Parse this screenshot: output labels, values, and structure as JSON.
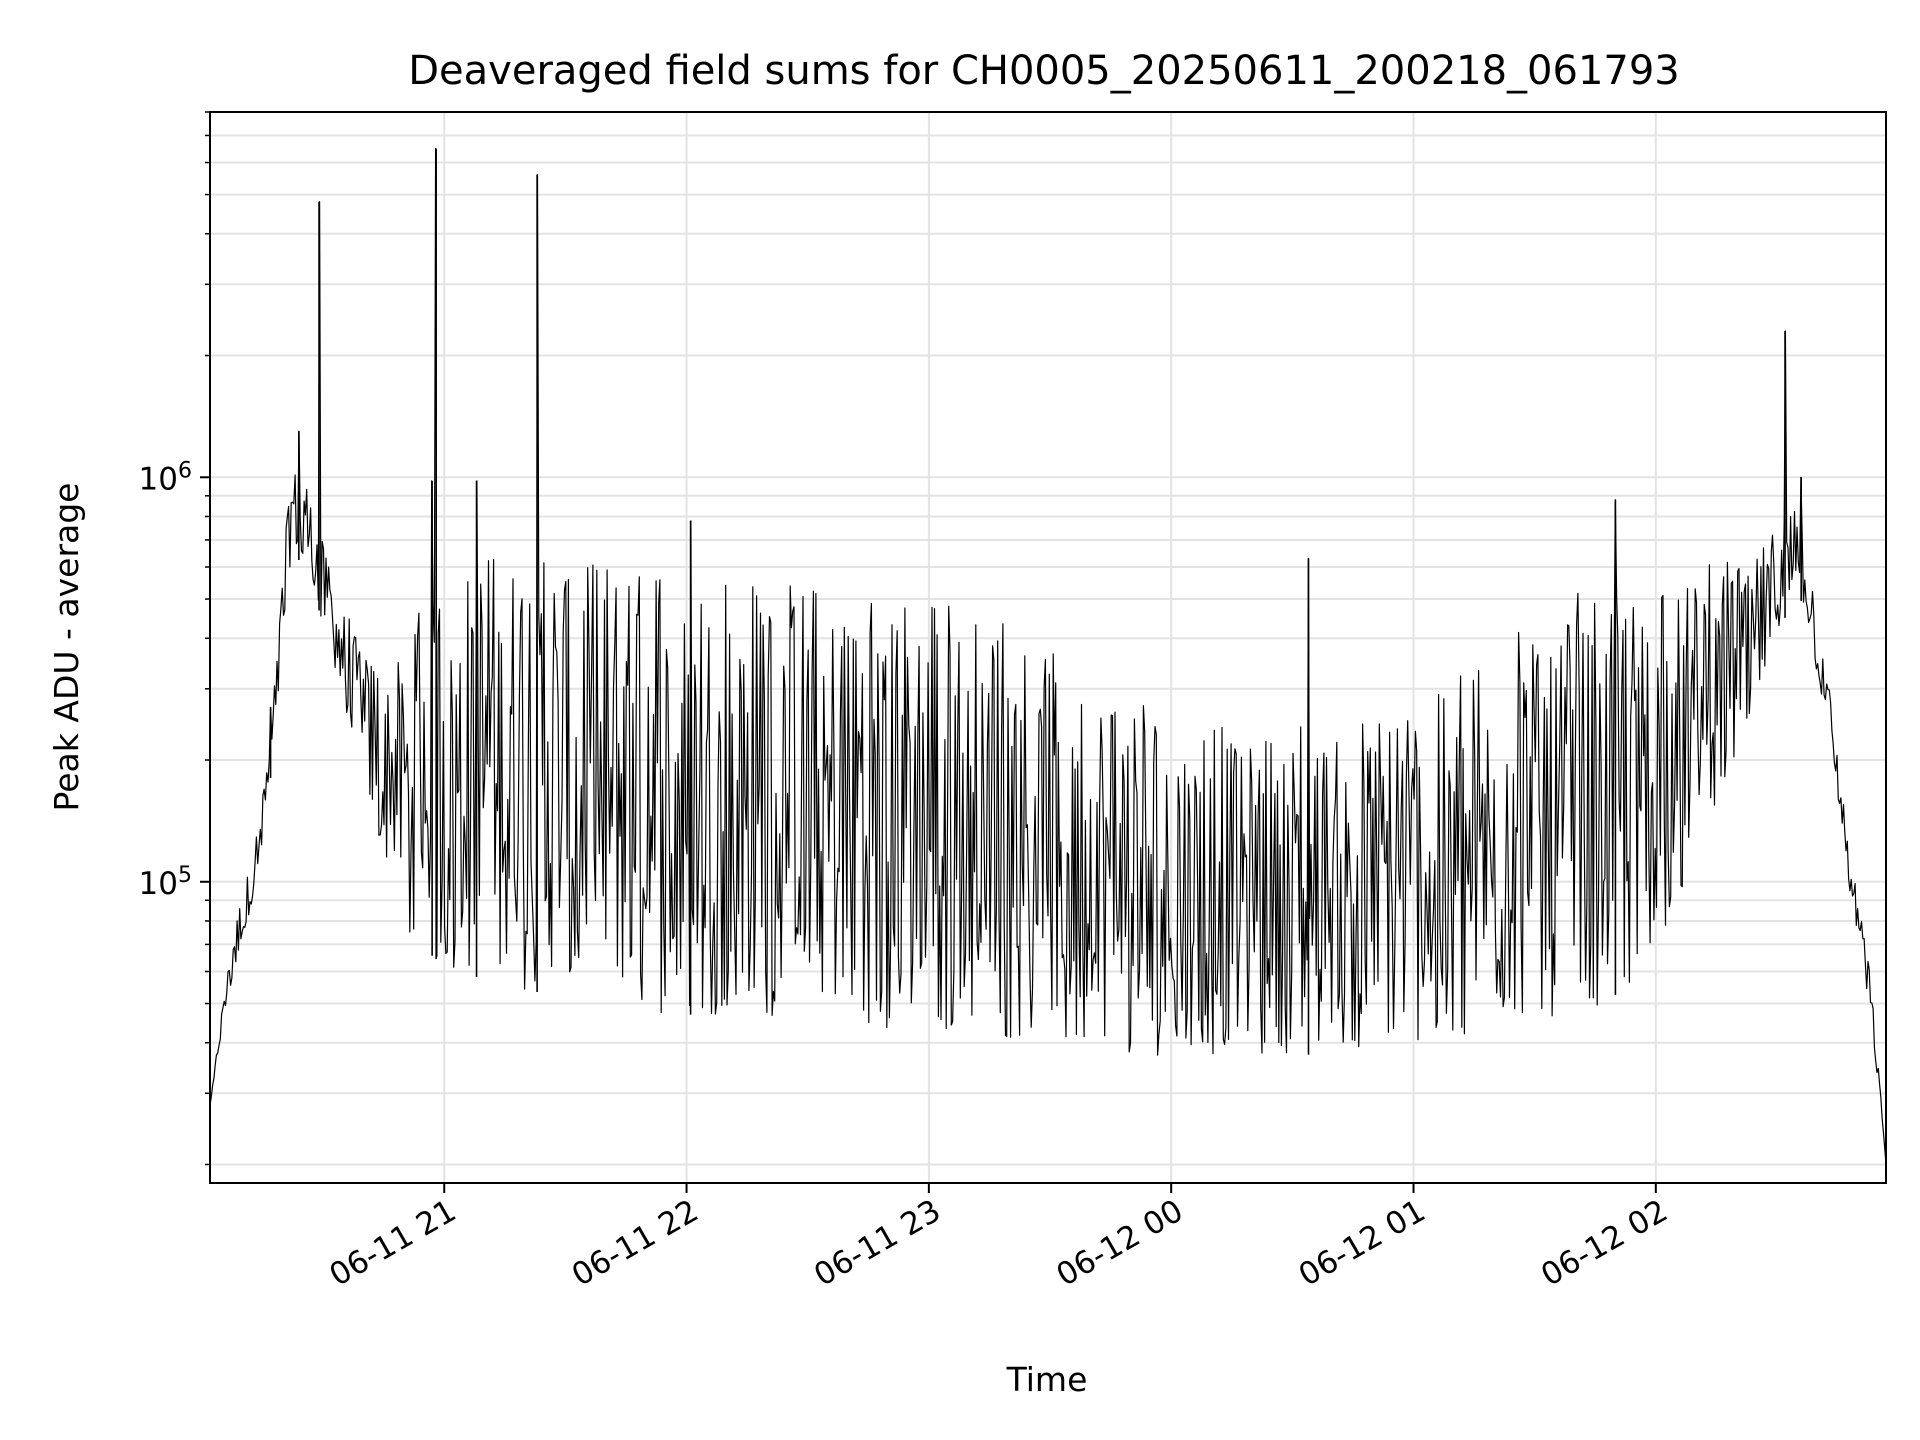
{
  "chart_data": {
    "type": "line",
    "title": "Deaveraged field sums for CH0005_20250611_200218_061793",
    "xlabel": "Time",
    "ylabel": "Peak ADU - average",
    "yscale": "log",
    "ylim": [
      18000,
      8000000
    ],
    "xlim": [
      "2025-06-11 20:02",
      "2025-06-12 02:57"
    ],
    "grid": true,
    "x_ticks": [
      {
        "time": "2025-06-11 21:00",
        "label": "06-11 21"
      },
      {
        "time": "2025-06-11 22:00",
        "label": "06-11 22"
      },
      {
        "time": "2025-06-11 23:00",
        "label": "06-11 23"
      },
      {
        "time": "2025-06-12 00:00",
        "label": "06-12 00"
      },
      {
        "time": "2025-06-12 01:00",
        "label": "06-12 01"
      },
      {
        "time": "2025-06-12 02:00",
        "label": "06-12 02"
      }
    ],
    "y_ticks": [
      {
        "value": 100000,
        "base": "10",
        "exp": "5"
      },
      {
        "value": 1000000,
        "base": "10",
        "exp": "6"
      }
    ],
    "series": [
      {
        "color": "#000000",
        "envelope": [
          {
            "x": "2025-06-11 20:02",
            "y_low": 28000,
            "y_high": 28000
          },
          {
            "x": "2025-06-11 20:06",
            "y_low": 50000,
            "y_high": 58000
          },
          {
            "x": "2025-06-11 20:10",
            "y_low": 70000,
            "y_high": 95000
          },
          {
            "x": "2025-06-11 20:14",
            "y_low": 100000,
            "y_high": 140000
          },
          {
            "x": "2025-06-11 20:18",
            "y_low": 220000,
            "y_high": 320000
          },
          {
            "x": "2025-06-11 20:22",
            "y_low": 600000,
            "y_high": 1100000
          },
          {
            "x": "2025-06-11 20:26",
            "y_low": 650000,
            "y_high": 950000
          },
          {
            "x": "2025-06-11 20:30",
            "y_low": 420000,
            "y_high": 750000
          },
          {
            "x": "2025-06-11 20:35",
            "y_low": 280000,
            "y_high": 480000
          },
          {
            "x": "2025-06-11 20:40",
            "y_low": 180000,
            "y_high": 380000
          },
          {
            "x": "2025-06-11 20:45",
            "y_low": 110000,
            "y_high": 320000
          },
          {
            "x": "2025-06-11 20:50",
            "y_low": 75000,
            "y_high": 400000
          },
          {
            "x": "2025-06-11 21:00",
            "y_low": 62000,
            "y_high": 600000
          },
          {
            "x": "2025-06-11 21:15",
            "y_low": 55000,
            "y_high": 650000
          },
          {
            "x": "2025-06-11 21:30",
            "y_low": 52000,
            "y_high": 650000
          },
          {
            "x": "2025-06-11 21:45",
            "y_low": 48000,
            "y_high": 620000
          },
          {
            "x": "2025-06-11 22:00",
            "y_low": 47000,
            "y_high": 580000
          },
          {
            "x": "2025-06-11 22:20",
            "y_low": 46000,
            "y_high": 560000
          },
          {
            "x": "2025-06-11 22:40",
            "y_low": 44000,
            "y_high": 520000
          },
          {
            "x": "2025-06-11 23:00",
            "y_low": 43000,
            "y_high": 500000
          },
          {
            "x": "2025-06-11 23:20",
            "y_low": 40000,
            "y_high": 480000
          },
          {
            "x": "2025-06-11 23:40",
            "y_low": 38000,
            "y_high": 300000
          },
          {
            "x": "2025-06-12 00:00",
            "y_low": 37000,
            "y_high": 260000
          },
          {
            "x": "2025-06-12 00:20",
            "y_low": 36000,
            "y_high": 240000
          },
          {
            "x": "2025-06-12 00:40",
            "y_low": 38000,
            "y_high": 250000
          },
          {
            "x": "2025-06-12 01:00",
            "y_low": 40000,
            "y_high": 260000
          },
          {
            "x": "2025-06-12 01:20",
            "y_low": 42000,
            "y_high": 380000
          },
          {
            "x": "2025-06-12 01:40",
            "y_low": 46000,
            "y_high": 520000
          },
          {
            "x": "2025-06-12 02:00",
            "y_low": 60000,
            "y_high": 560000
          },
          {
            "x": "2025-06-12 02:15",
            "y_low": 150000,
            "y_high": 620000
          },
          {
            "x": "2025-06-12 02:25",
            "y_low": 280000,
            "y_high": 650000
          },
          {
            "x": "2025-06-12 02:35",
            "y_low": 550000,
            "y_high": 850000
          },
          {
            "x": "2025-06-12 02:42",
            "y_low": 260000,
            "y_high": 360000
          },
          {
            "x": "2025-06-12 02:48",
            "y_low": 95000,
            "y_high": 120000
          },
          {
            "x": "2025-06-12 02:53",
            "y_low": 48000,
            "y_high": 60000
          },
          {
            "x": "2025-06-12 02:57",
            "y_low": 20000,
            "y_high": 22000
          }
        ],
        "spikes": [
          {
            "x": "2025-06-11 20:17",
            "y": 270000
          },
          {
            "x": "2025-06-11 20:24",
            "y": 1300000
          },
          {
            "x": "2025-06-11 20:29",
            "y": 4800000
          },
          {
            "x": "2025-06-11 20:57",
            "y": 980000
          },
          {
            "x": "2025-06-11 20:58",
            "y": 6500000
          },
          {
            "x": "2025-06-11 21:08",
            "y": 980000
          },
          {
            "x": "2025-06-11 21:23",
            "y": 5600000
          },
          {
            "x": "2025-06-11 22:01",
            "y": 780000
          },
          {
            "x": "2025-06-12 00:34",
            "y": 630000
          },
          {
            "x": "2025-06-12 01:50",
            "y": 880000
          },
          {
            "x": "2025-06-12 02:32",
            "y": 2300000
          },
          {
            "x": "2025-06-12 02:36",
            "y": 1000000
          }
        ]
      }
    ]
  }
}
